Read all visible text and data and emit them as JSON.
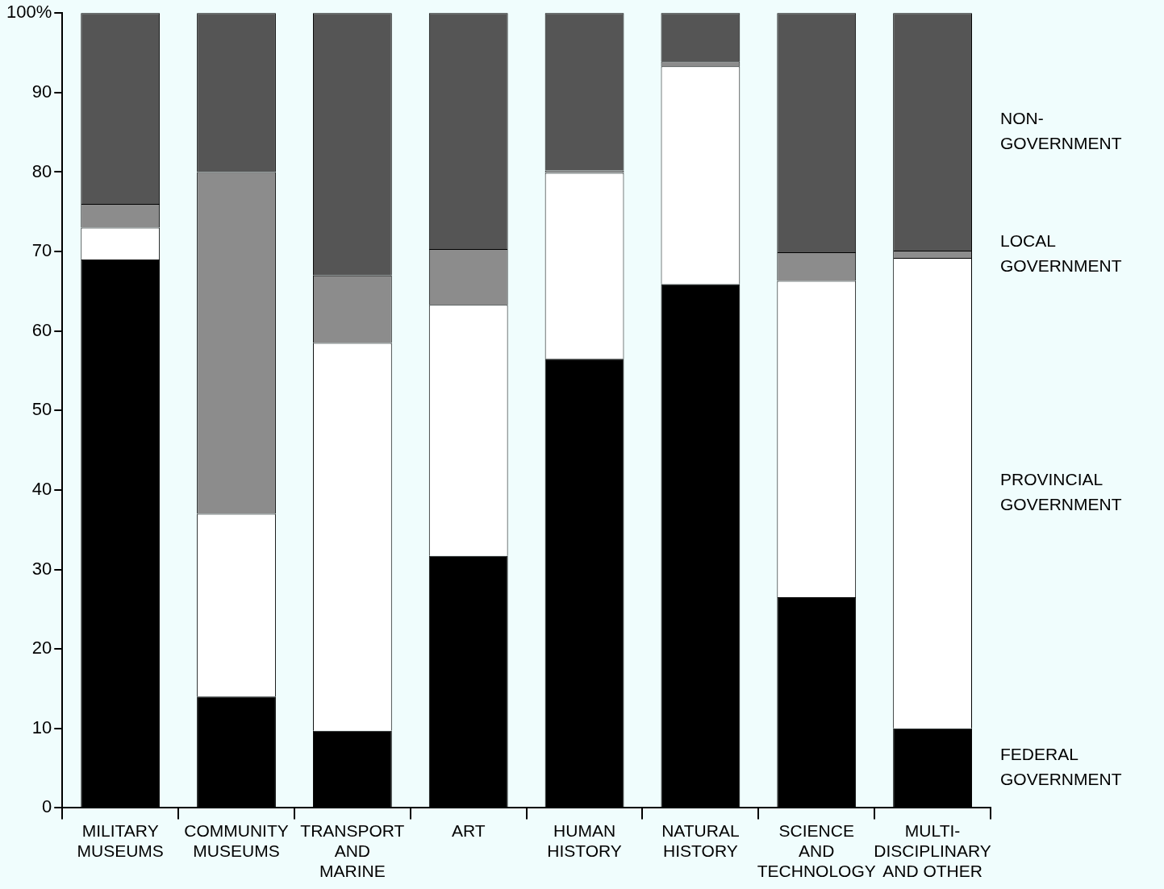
{
  "chart_data": {
    "type": "bar",
    "stacked": true,
    "categories": [
      "MILITARY\nMUSEUMS",
      "COMMUNITY\nMUSEUMS",
      "TRANSPORT\nAND\nMARINE",
      "ART",
      "HUMAN\nHISTORY",
      "NATURAL\nHISTORY",
      "SCIENCE\nAND\nTECHNOLOGY",
      "MULTI-\nDISCIPLINARY\nAND OTHER"
    ],
    "series": [
      {
        "name": "FEDERAL\nGOVERNMENT",
        "color": "#000000",
        "values": [
          69,
          14,
          9.7,
          31.7,
          56.5,
          65.9,
          26.5,
          10
        ]
      },
      {
        "name": "PROVINCIAL\nGOVERNMENT",
        "color": "#ffffff",
        "values": [
          4,
          23,
          48.8,
          31.6,
          23.4,
          27.4,
          39.8,
          59.2
        ]
      },
      {
        "name": "LOCAL\nGOVERNMENT",
        "color": "#8c8c8c",
        "values": [
          3,
          43,
          8.5,
          7,
          0.3,
          0.6,
          3.6,
          0.9
        ]
      },
      {
        "name": "NON-\nGOVERNMENT",
        "color": "#555555",
        "values": [
          24,
          20,
          33,
          29.7,
          19.8,
          6.1,
          30.1,
          29.9
        ]
      }
    ],
    "ylim": [
      0,
      100
    ],
    "yticks": [
      0,
      10,
      20,
      30,
      40,
      50,
      60,
      70,
      80,
      90,
      {
        "value": 100,
        "label": "100%"
      }
    ],
    "grid": false
  }
}
